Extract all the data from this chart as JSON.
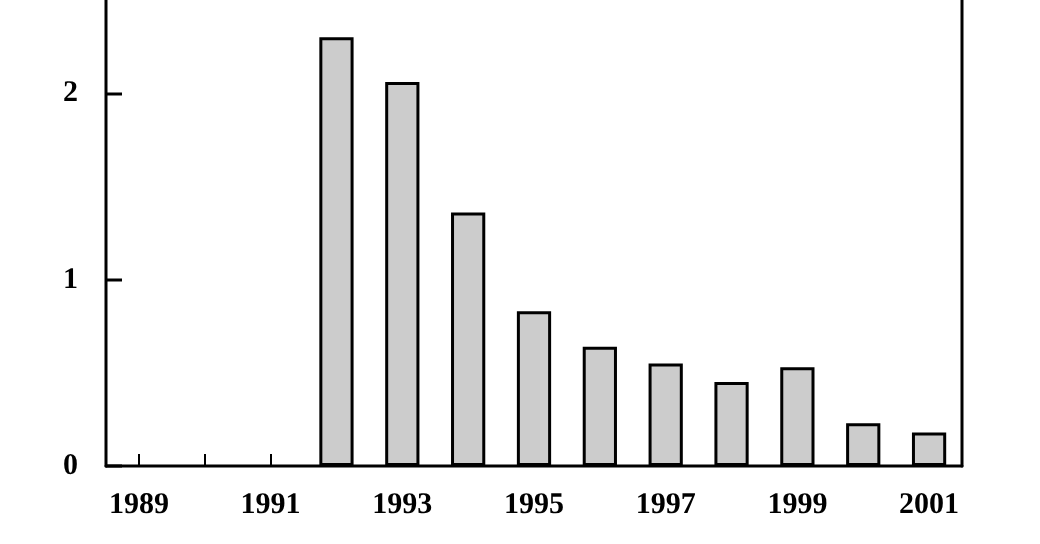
{
  "chart_data": {
    "type": "bar",
    "categories": [
      "1989",
      null,
      "1991",
      null,
      "1993",
      null,
      "1995",
      null,
      "1997",
      null,
      "1999",
      null,
      "2001"
    ],
    "values": [
      null,
      null,
      null,
      2.3,
      2.06,
      1.36,
      0.83,
      0.64,
      0.55,
      0.45,
      0.53,
      0.23,
      0.18
    ],
    "color": "#cccccc",
    "ylim": [
      0,
      2.5
    ],
    "yticks": [
      0,
      1,
      2
    ],
    "grid": false
  }
}
